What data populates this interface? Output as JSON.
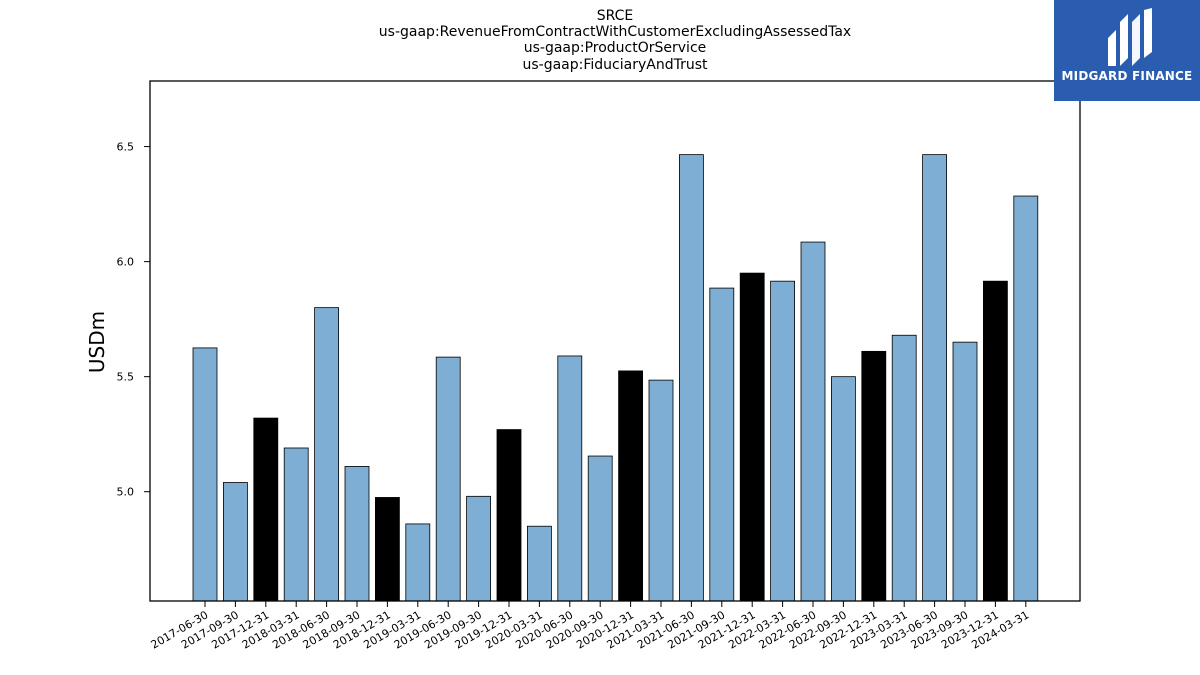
{
  "logo": {
    "text": "MIDGARD FINANCE"
  },
  "chart_data": {
    "type": "bar",
    "title_lines": [
      "SRCE",
      "us-gaap:RevenueFromContractWithCustomerExcludingAssessedTax",
      "us-gaap:ProductOrService",
      "us-gaap:FiduciaryAndTrust"
    ],
    "xlabel": "",
    "ylabel": "USDm",
    "ylim": [
      4.525,
      6.785
    ],
    "yticks": [
      "5.0",
      "5.5",
      "6.0",
      "6.5"
    ],
    "grid": false,
    "categories": [
      "2017-06-30",
      "2017-09-30",
      "2017-12-31",
      "2018-03-31",
      "2018-06-30",
      "2018-09-30",
      "2018-12-31",
      "2019-03-31",
      "2019-06-30",
      "2019-09-30",
      "2019-12-31",
      "2020-03-31",
      "2020-06-30",
      "2020-09-30",
      "2020-12-31",
      "2021-03-31",
      "2021-06-30",
      "2021-09-30",
      "2021-12-31",
      "2022-03-31",
      "2022-06-30",
      "2022-09-30",
      "2022-12-31",
      "2023-03-31",
      "2023-06-30",
      "2023-09-30",
      "2023-12-31",
      "2024-03-31"
    ],
    "values": [
      5.625,
      5.04,
      5.32,
      5.19,
      5.8,
      5.11,
      4.975,
      4.86,
      5.585,
      4.98,
      5.27,
      4.85,
      5.59,
      5.155,
      5.525,
      5.485,
      6.465,
      5.885,
      5.95,
      5.915,
      6.085,
      5.5,
      5.61,
      5.68,
      6.465,
      5.65,
      5.915,
      6.285
    ],
    "bar_colors": [
      "#7eaed3",
      "#7eaed3",
      "#000000",
      "#7eaed3",
      "#7eaed3",
      "#7eaed3",
      "#000000",
      "#7eaed3",
      "#7eaed3",
      "#7eaed3",
      "#000000",
      "#7eaed3",
      "#7eaed3",
      "#7eaed3",
      "#000000",
      "#7eaed3",
      "#7eaed3",
      "#7eaed3",
      "#000000",
      "#7eaed3",
      "#7eaed3",
      "#7eaed3",
      "#000000",
      "#7eaed3",
      "#7eaed3",
      "#7eaed3",
      "#000000",
      "#7eaed3"
    ],
    "colors": {
      "quarter_bar": "#7eaed3",
      "year_end_bar": "#000000",
      "logo_bg": "#2a5db0"
    }
  }
}
